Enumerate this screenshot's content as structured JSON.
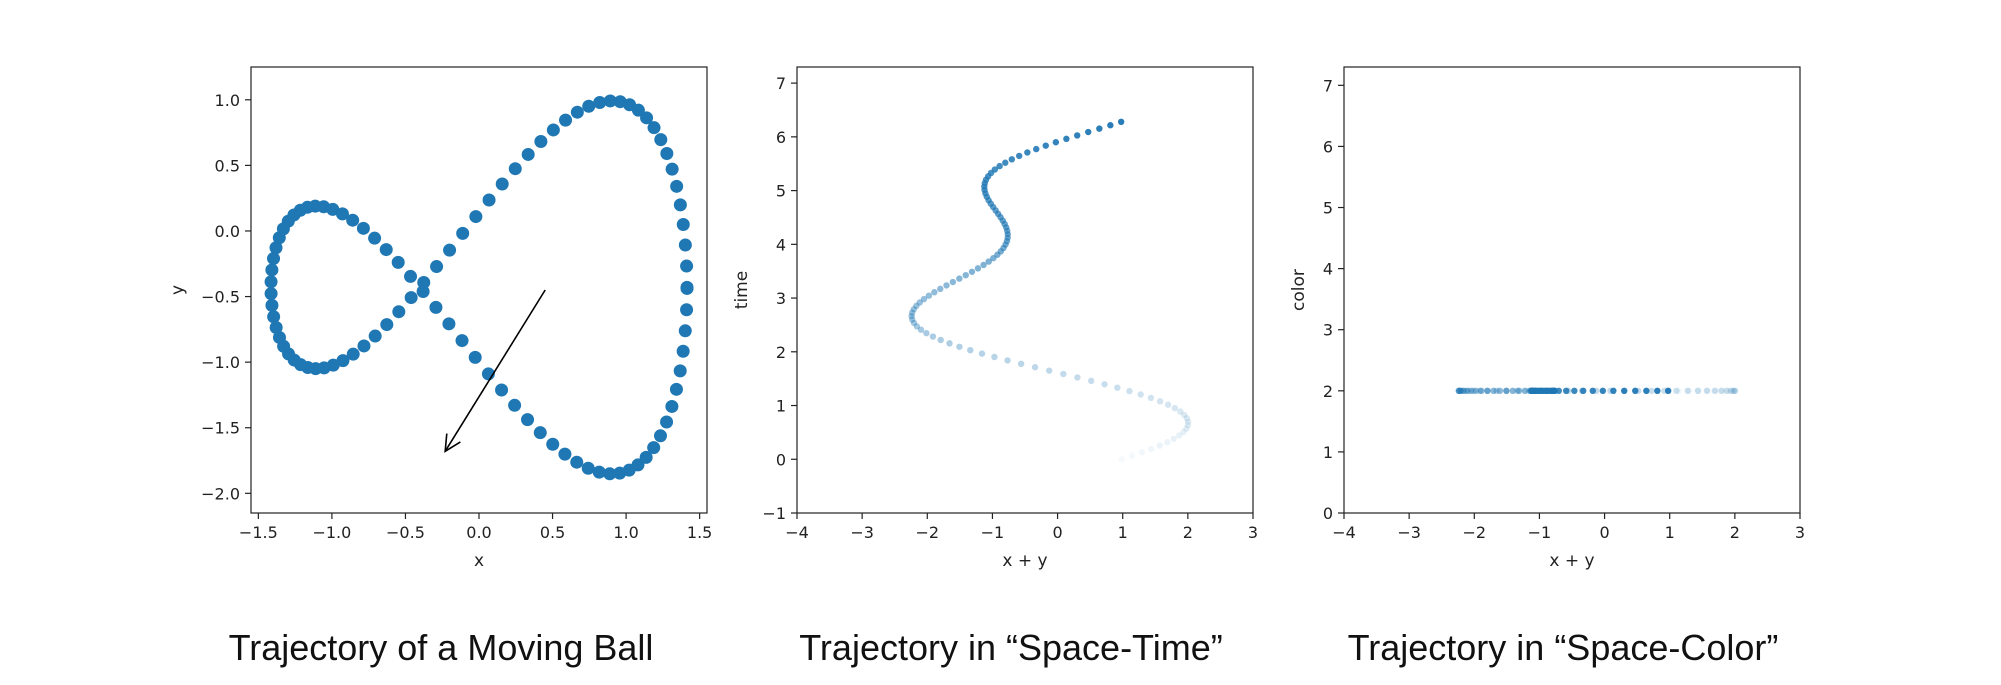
{
  "figure": {
    "captions": [
      "Trajectory of a Moving Ball",
      "Trajectory in “Space-Time”",
      "Trajectory in “Space-Color”"
    ]
  },
  "style": {
    "marker_color": "#1f77b4",
    "axis_color": "#222222"
  },
  "chart_data": [
    {
      "type": "scatter",
      "title": "",
      "xlabel": "x",
      "ylabel": "y",
      "xlim": [
        -1.55,
        1.55
      ],
      "ylim": [
        -2.15,
        1.25
      ],
      "xticks": [
        -1.5,
        -1.0,
        -0.5,
        0.0,
        0.5,
        1.0,
        1.5
      ],
      "xtick_labels": [
        "−1.5",
        "−1.0",
        "−0.5",
        "0.0",
        "0.5",
        "1.0",
        "1.5"
      ],
      "yticks": [
        -2.0,
        -1.5,
        -1.0,
        -0.5,
        0.0,
        0.5,
        1.0
      ],
      "ytick_labels": [
        "−2.0",
        "−1.5",
        "−1.0",
        "−0.5",
        "0.0",
        "0.5",
        "1.0"
      ],
      "curve": {
        "x": "sqrt(2)*cos(t)",
        "y": "sin(2t) - 0.5 + ... (figure-eight, ~1.41 amplitude)",
        "t_range": [
          0,
          6.28
        ],
        "points": 100
      },
      "arrow": {
        "from": [
          0.45,
          -0.45
        ],
        "to": [
          -0.23,
          -1.68
        ]
      },
      "marker": "large dots",
      "grid": false
    },
    {
      "type": "scatter",
      "title": "",
      "xlabel": "x + y",
      "ylabel": "time",
      "xlim": [
        -4,
        3
      ],
      "ylim": [
        -1,
        7.3
      ],
      "xticks": [
        -4,
        -3,
        -2,
        -1,
        0,
        1,
        2,
        3
      ],
      "xtick_labels": [
        "−4",
        "−3",
        "−2",
        "−1",
        "0",
        "1",
        "2",
        "3"
      ],
      "yticks": [
        -1,
        0,
        1,
        2,
        3,
        4,
        5,
        6,
        7
      ],
      "ytick_labels": [
        "−1",
        "0",
        "1",
        "2",
        "3",
        "4",
        "5",
        "6",
        "7"
      ],
      "time_range": [
        0,
        6.28
      ],
      "points": 100,
      "marker": "small dots, opacity increasing with time",
      "grid": false
    },
    {
      "type": "scatter",
      "title": "",
      "xlabel": "x + y",
      "ylabel": "color",
      "xlim": [
        -4,
        3
      ],
      "ylim": [
        0,
        7.3
      ],
      "xticks": [
        -4,
        -3,
        -2,
        -1,
        0,
        1,
        2,
        3
      ],
      "xtick_labels": [
        "−4",
        "−3",
        "−2",
        "−1",
        "0",
        "1",
        "2",
        "3"
      ],
      "yticks": [
        0,
        1,
        2,
        3,
        4,
        5,
        6,
        7
      ],
      "ytick_labels": [
        "0",
        "1",
        "2",
        "3",
        "4",
        "5",
        "6",
        "7"
      ],
      "constant_y": 2,
      "points": 100,
      "marker": "small dots, opacity increasing with time",
      "grid": false
    }
  ]
}
